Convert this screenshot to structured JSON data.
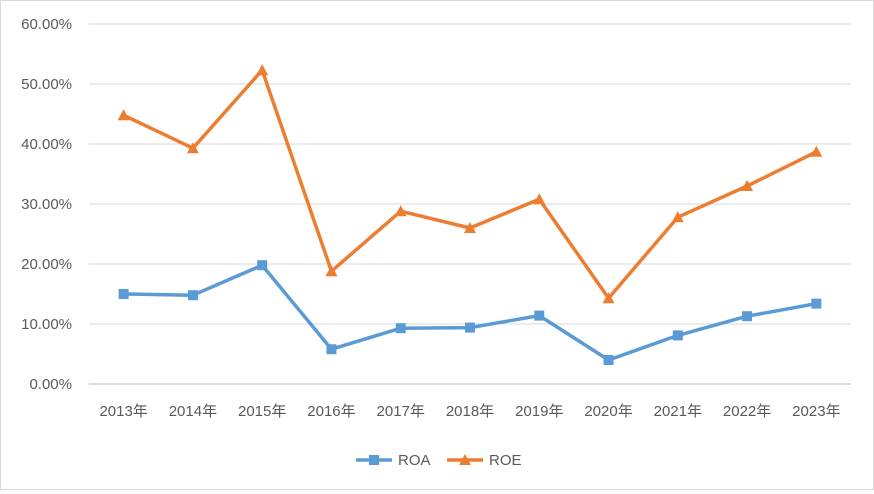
{
  "chart_data": {
    "type": "line",
    "categories": [
      "2013年",
      "2014年",
      "2015年",
      "2016年",
      "2017年",
      "2018年",
      "2019年",
      "2020年",
      "2021年",
      "2022年",
      "2023年"
    ],
    "series": [
      {
        "name": "ROA",
        "color": "#5b9bd5",
        "marker": "square",
        "values": [
          15.0,
          14.8,
          19.8,
          5.8,
          9.3,
          9.4,
          11.4,
          4.0,
          8.1,
          11.3,
          13.4
        ]
      },
      {
        "name": "ROE",
        "color": "#ed7d31",
        "marker": "triangle",
        "values": [
          44.8,
          39.3,
          52.3,
          18.8,
          28.8,
          26.0,
          30.8,
          14.3,
          27.8,
          33.0,
          38.7
        ]
      }
    ],
    "yticks": [
      "0.00%",
      "10.00%",
      "20.00%",
      "30.00%",
      "40.00%",
      "50.00%",
      "60.00%"
    ],
    "ylim": [
      0,
      60
    ],
    "grid": true,
    "legend": "bottom"
  }
}
